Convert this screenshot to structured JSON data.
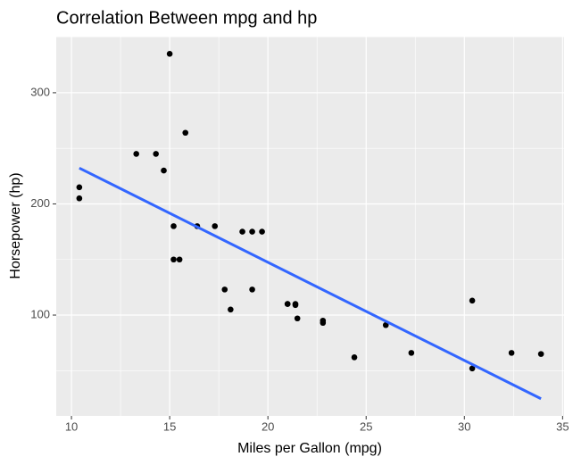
{
  "chart_data": {
    "type": "scatter",
    "title": "Correlation Between mpg and hp",
    "x_label": "Miles per Gallon (mpg)",
    "y_label": "Horsepower (hp)",
    "series": [
      {
        "color": "#000000",
        "x": [
          21,
          21,
          22.8,
          21.4,
          18.7,
          18.1,
          14.3,
          24.4,
          22.8,
          19.2,
          17.8,
          16.4,
          17.3,
          15.2,
          10.4,
          10.4,
          14.7,
          32.4,
          30.4,
          33.9,
          21.5,
          15.5,
          15.2,
          13.3,
          19.2,
          27.3,
          26,
          30.4,
          15.8,
          19.7,
          15,
          21.4
        ],
        "values": [
          110,
          110,
          93,
          110,
          175,
          105,
          245,
          62,
          95,
          123,
          123,
          180,
          180,
          180,
          205,
          215,
          230,
          66,
          52,
          65,
          97,
          150,
          150,
          245,
          175,
          66,
          91,
          113,
          264,
          175,
          335,
          109
        ]
      }
    ],
    "lines": [
      {
        "color": "#3366ff",
        "x": [
          10.4,
          33.9
        ],
        "values": [
          232.25,
          24.74
        ]
      }
    ],
    "xlim": [
      9.225,
      35.075
    ],
    "ylim": [
      9.3,
      350.5
    ],
    "xticks": [
      10,
      15,
      20,
      25,
      30,
      35
    ],
    "yticks": [
      100,
      200,
      300
    ],
    "grid": true
  }
}
